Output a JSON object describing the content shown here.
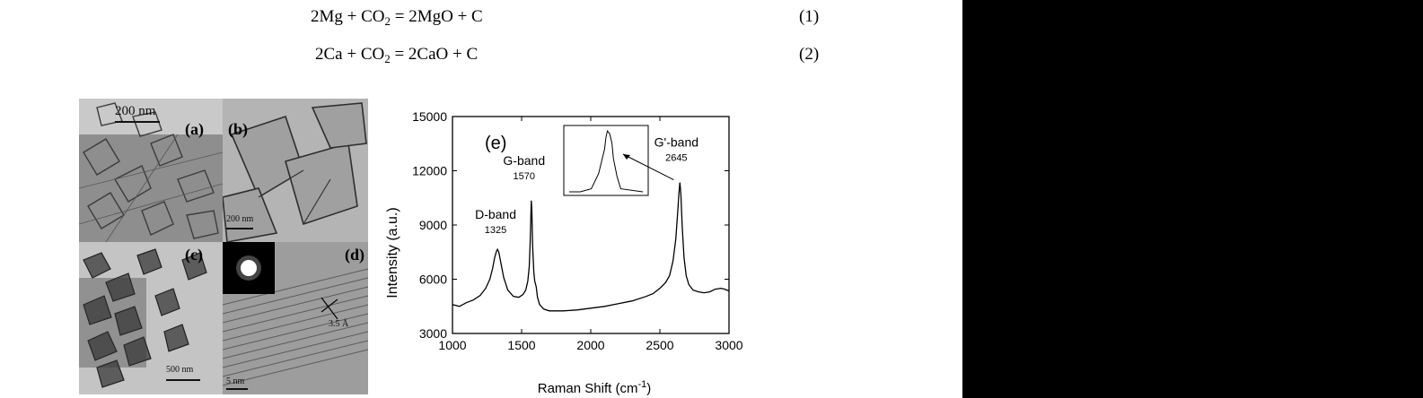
{
  "equations": [
    {
      "lhs": "2Mg + CO",
      "sub": "2",
      "rhs": " = 2MgO + C",
      "number": "(1)"
    },
    {
      "lhs": "2Ca + CO",
      "sub": "2",
      "rhs": " = 2CaO + C",
      "number": "(2)"
    }
  ],
  "figure": {
    "panels": {
      "a": {
        "label": "(a)",
        "scale": "200 nm"
      },
      "b": {
        "label": "(b)",
        "scale": "200 nm"
      },
      "c": {
        "label": "(c)",
        "scale": "500 nm"
      },
      "d": {
        "label": "(d)",
        "scale": "5 nm",
        "annotation": "3.5 Å"
      }
    }
  },
  "chart_data": {
    "type": "line",
    "panel_label": "(e)",
    "xlabel": "Raman Shift (cm",
    "xlabel_sup": "-1",
    "ylabel": "Intensity (a.u.)",
    "xlim": [
      1000,
      3000
    ],
    "ylim": [
      3000,
      15000
    ],
    "xticks": [
      1000,
      1500,
      2000,
      2500,
      3000
    ],
    "yticks": [
      3000,
      6000,
      9000,
      12000,
      15000
    ],
    "grid": false,
    "annotations": [
      {
        "name": "D-band",
        "value": "1325",
        "x": 1325,
        "y": 7650
      },
      {
        "name": "G-band",
        "value": "1570",
        "x": 1570,
        "y": 10350
      },
      {
        "name": "G'-band",
        "value": "2645",
        "x": 2645,
        "y": 11350
      }
    ],
    "series": [
      {
        "x": [
          1000,
          1050,
          1100,
          1150,
          1200,
          1240,
          1270,
          1290,
          1305,
          1318,
          1325,
          1335,
          1350,
          1370,
          1400,
          1440,
          1480,
          1510,
          1530,
          1545,
          1555,
          1562,
          1567,
          1570,
          1574,
          1580,
          1588,
          1595,
          1605,
          1615,
          1630,
          1660,
          1700,
          1800,
          1900,
          2000,
          2100,
          2200,
          2300,
          2400,
          2450,
          2500,
          2540,
          2570,
          2595,
          2615,
          2628,
          2638,
          2645,
          2652,
          2662,
          2675,
          2690,
          2710,
          2740,
          2780,
          2820,
          2860,
          2900,
          2940,
          2970,
          3000
        ],
        "y": [
          4600,
          4500,
          4700,
          4850,
          5100,
          5500,
          6000,
          6600,
          7200,
          7550,
          7650,
          7500,
          6900,
          6100,
          5400,
          5050,
          5000,
          5150,
          5400,
          5900,
          6700,
          8000,
          9500,
          10350,
          9800,
          7800,
          6400,
          5900,
          5600,
          5000,
          4600,
          4350,
          4250,
          4250,
          4300,
          4400,
          4500,
          4650,
          4800,
          5050,
          5200,
          5500,
          5800,
          6200,
          7000,
          8200,
          9600,
          10800,
          11350,
          10700,
          8900,
          7200,
          6200,
          5700,
          5400,
          5300,
          5250,
          5300,
          5450,
          5500,
          5450,
          5350
        ]
      }
    ],
    "inset": {
      "x": [
        0.0,
        0.15,
        0.3,
        0.4,
        0.45,
        0.48,
        0.5,
        0.52,
        0.55,
        0.58,
        0.6,
        0.65,
        0.7,
        1.0
      ],
      "y": [
        0.0,
        0.0,
        0.05,
        0.3,
        0.55,
        0.7,
        0.9,
        1.0,
        0.95,
        0.8,
        0.55,
        0.25,
        0.05,
        0.0
      ]
    }
  }
}
